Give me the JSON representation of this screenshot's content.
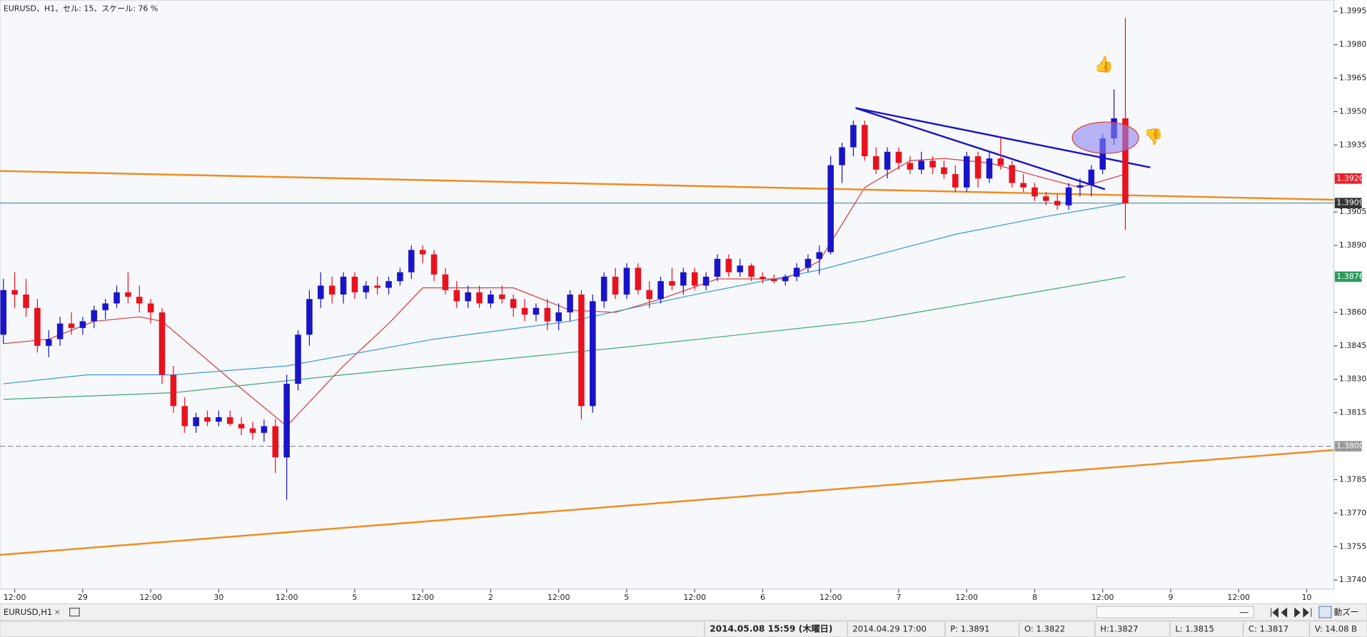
{
  "chart_data": {
    "type": "candlestick",
    "title": "EURUSD、H1、セル: 15、スケール: 76 %",
    "up_color": "#1a14c8",
    "down_color": "#e8121e",
    "xlim": [
      -0.3,
      117.4
    ],
    "ylim": [
      1.3736,
      1.4
    ],
    "yticks": [
      1.3995,
      {
        "value": 1.398,
        "label": "1.3980"
      },
      1.3965,
      {
        "value": 1.395,
        "label": "1.3950"
      },
      1.3935,
      1.3905,
      {
        "value": 1.389,
        "label": "1.3890"
      },
      {
        "value": 1.386,
        "label": "1.3860"
      },
      1.3845,
      {
        "value": 1.383,
        "label": "1.3830"
      },
      1.3815,
      1.3785,
      {
        "value": 1.377,
        "label": "1.3770"
      },
      1.3755,
      {
        "value": 1.374,
        "label": "1.3740"
      }
    ],
    "xticks": [
      {
        "value": 1,
        "label": "12:00"
      },
      {
        "value": 7,
        "label": "29"
      },
      {
        "value": 13,
        "label": "12:00"
      },
      {
        "value": 19,
        "label": "30"
      },
      {
        "value": 25,
        "label": "12:00"
      },
      {
        "value": 31,
        "label": "5"
      },
      {
        "value": 37,
        "label": "12:00"
      },
      {
        "value": 43,
        "label": "2"
      },
      {
        "value": 49,
        "label": "12:00"
      },
      {
        "value": 55,
        "label": "5"
      },
      {
        "value": 61,
        "label": "12:00"
      },
      {
        "value": 67,
        "label": "6"
      },
      {
        "value": 73,
        "label": "12:00"
      },
      {
        "value": 79,
        "label": "7"
      },
      {
        "value": 85,
        "label": "12:00"
      },
      {
        "value": 91,
        "label": "8"
      },
      {
        "value": 97,
        "label": "12:00"
      },
      {
        "value": 103,
        "label": "9"
      },
      {
        "value": 109,
        "label": "12:00"
      },
      {
        "value": 115,
        "label": "10"
      }
    ],
    "open": [
      1.385,
      1.387,
      1.3868,
      1.3862,
      1.3845,
      1.3848,
      1.3855,
      1.3853,
      1.3856,
      1.3861,
      1.3864,
      1.3869,
      1.3867,
      1.3864,
      1.386,
      1.3832,
      1.3818,
      1.3809,
      1.3813,
      1.3811,
      1.3813,
      1.381,
      1.3808,
      1.3806,
      1.3809,
      1.3795,
      1.3828,
      1.385,
      1.3866,
      1.3872,
      1.3868,
      1.3876,
      1.3869,
      1.3872,
      1.3871,
      1.3874,
      1.3878,
      1.3888,
      1.3886,
      1.3877,
      1.387,
      1.3865,
      1.3869,
      1.3864,
      1.3868,
      1.3866,
      1.3862,
      1.3859,
      1.3862,
      1.3856,
      1.386,
      1.3868,
      1.3818,
      1.3865,
      1.3876,
      1.3868,
      1.388,
      1.387,
      1.3866,
      1.3874,
      1.3872,
      1.3878,
      1.3872,
      1.3876,
      1.3884,
      1.3878,
      1.3881,
      1.3876,
      1.3875,
      1.3874,
      1.3876,
      1.388,
      1.3884,
      1.3887,
      1.3926,
      1.3934,
      1.3944,
      1.393,
      1.3924,
      1.3932,
      1.3927,
      1.3924,
      1.3928,
      1.3925,
      1.3922,
      1.3916,
      1.393,
      1.392,
      1.3929,
      1.3926,
      1.3918,
      1.3916,
      1.3912,
      1.391,
      1.3908,
      1.3916,
      1.3917,
      1.3924,
      1.3938,
      1.3947
    ],
    "high": [
      1.3875,
      1.3878,
      1.3875,
      1.3866,
      1.3852,
      1.3858,
      1.386,
      1.3858,
      1.3863,
      1.3866,
      1.3872,
      1.3878,
      1.3872,
      1.3866,
      1.3862,
      1.3836,
      1.3822,
      1.3815,
      1.3816,
      1.3816,
      1.3816,
      1.3813,
      1.3811,
      1.3812,
      1.3812,
      1.3832,
      1.3852,
      1.387,
      1.3878,
      1.3876,
      1.3878,
      1.3878,
      1.3874,
      1.3876,
      1.3876,
      1.388,
      1.389,
      1.389,
      1.3888,
      1.388,
      1.3874,
      1.3872,
      1.3872,
      1.387,
      1.3872,
      1.3868,
      1.3866,
      1.3864,
      1.3866,
      1.3864,
      1.387,
      1.387,
      1.3868,
      1.3878,
      1.388,
      1.3882,
      1.3882,
      1.3874,
      1.3876,
      1.388,
      1.388,
      1.388,
      1.3878,
      1.3886,
      1.3886,
      1.3884,
      1.3882,
      1.3878,
      1.3877,
      1.3877,
      1.3882,
      1.3886,
      1.389,
      1.393,
      1.3936,
      1.3946,
      1.3946,
      1.3934,
      1.3934,
      1.3934,
      1.393,
      1.3932,
      1.393,
      1.3928,
      1.3926,
      1.3932,
      1.3932,
      1.3932,
      1.3938,
      1.3928,
      1.3922,
      1.3918,
      1.3914,
      1.3913,
      1.3918,
      1.392,
      1.3926,
      1.394,
      1.396,
      1.3992
    ],
    "low": [
      1.3846,
      1.3862,
      1.3858,
      1.3842,
      1.384,
      1.3845,
      1.385,
      1.385,
      1.3853,
      1.3857,
      1.3862,
      1.3864,
      1.386,
      1.3855,
      1.3828,
      1.3815,
      1.3806,
      1.3806,
      1.3809,
      1.3809,
      1.3809,
      1.3805,
      1.3803,
      1.3802,
      1.3788,
      1.3776,
      1.3825,
      1.3845,
      1.3862,
      1.3864,
      1.3864,
      1.3866,
      1.3866,
      1.3868,
      1.3868,
      1.3872,
      1.3875,
      1.3882,
      1.3874,
      1.3868,
      1.3862,
      1.3862,
      1.3862,
      1.3862,
      1.3864,
      1.3858,
      1.3856,
      1.3856,
      1.3852,
      1.3852,
      1.3856,
      1.3812,
      1.3815,
      1.3862,
      1.3866,
      1.3866,
      1.3868,
      1.3862,
      1.3864,
      1.387,
      1.3868,
      1.387,
      1.387,
      1.3874,
      1.3876,
      1.3876,
      1.3874,
      1.3873,
      1.3873,
      1.3872,
      1.3874,
      1.3878,
      1.3877,
      1.3886,
      1.3918,
      1.393,
      1.3928,
      1.3922,
      1.392,
      1.3924,
      1.3922,
      1.3922,
      1.3922,
      1.392,
      1.3914,
      1.3914,
      1.3916,
      1.3918,
      1.3924,
      1.3916,
      1.3914,
      1.391,
      1.3908,
      1.3906,
      1.3906,
      1.3912,
      1.3912,
      1.3922,
      1.3935,
      1.3897
    ],
    "close": [
      1.387,
      1.3868,
      1.3862,
      1.3845,
      1.3848,
      1.3855,
      1.3853,
      1.3856,
      1.3861,
      1.3864,
      1.3869,
      1.3867,
      1.3864,
      1.386,
      1.3832,
      1.3818,
      1.3809,
      1.3813,
      1.3811,
      1.3813,
      1.381,
      1.3808,
      1.3806,
      1.3809,
      1.3795,
      1.3828,
      1.385,
      1.3866,
      1.3872,
      1.3868,
      1.3876,
      1.3869,
      1.3872,
      1.3871,
      1.3874,
      1.3878,
      1.3888,
      1.3886,
      1.3877,
      1.387,
      1.3865,
      1.3869,
      1.3864,
      1.3868,
      1.3866,
      1.3862,
      1.3859,
      1.3862,
      1.3856,
      1.386,
      1.3868,
      1.3818,
      1.3865,
      1.3876,
      1.3868,
      1.388,
      1.387,
      1.3866,
      1.3874,
      1.3872,
      1.3878,
      1.3872,
      1.3876,
      1.3884,
      1.3878,
      1.3881,
      1.3876,
      1.3875,
      1.3874,
      1.3876,
      1.388,
      1.3884,
      1.3887,
      1.3926,
      1.3934,
      1.3944,
      1.393,
      1.3924,
      1.3932,
      1.3927,
      1.3924,
      1.3928,
      1.3925,
      1.3922,
      1.3916,
      1.393,
      1.392,
      1.3929,
      1.3926,
      1.3918,
      1.3916,
      1.3912,
      1.391,
      1.3908,
      1.3916,
      1.3917,
      1.3924,
      1.3938,
      1.3947,
      1.3909
    ],
    "moving_averages": [
      {
        "color": "#e03a3a",
        "x": [
          0,
          4,
          8,
          12,
          14,
          20,
          25,
          30,
          34,
          37,
          45,
          50,
          54,
          58,
          63,
          69,
          72,
          76,
          80,
          83,
          87,
          92,
          95,
          99
        ],
        "values": [
          1.3846,
          1.3848,
          1.3856,
          1.3858,
          1.3856,
          1.383,
          1.3809,
          1.3836,
          1.3855,
          1.3871,
          1.3871,
          1.3861,
          1.386,
          1.3866,
          1.3875,
          1.3875,
          1.3883,
          1.3916,
          1.3928,
          1.3929,
          1.3927,
          1.392,
          1.3916,
          1.3922
        ]
      },
      {
        "color": "#3a9ad8",
        "x": [
          0,
          7.4,
          15,
          25,
          38,
          50,
          61,
          72,
          84,
          92,
          99
        ],
        "values": [
          1.3828,
          1.3832,
          1.3832,
          1.3836,
          1.3848,
          1.3856,
          1.3868,
          1.3879,
          1.3895,
          1.3903,
          1.3909
        ]
      },
      {
        "color": "#3aaa7a",
        "x": [
          0,
          15,
          30,
          54,
          76,
          99
        ],
        "values": [
          1.3821,
          1.3824,
          1.3832,
          1.3844,
          1.3856,
          1.3876
        ]
      }
    ],
    "trendlines": [
      {
        "color": "#f08c1a",
        "x": [
          -0.3,
          117.4
        ],
        "values": [
          1.39234,
          1.39105
        ]
      },
      {
        "color": "#f08c1a",
        "x": [
          -0.3,
          117.4
        ],
        "values": [
          1.37513,
          1.37983
        ]
      },
      {
        "color": "#1a14c8",
        "x": [
          75.2,
          101.2
        ],
        "values": [
          1.39516,
          1.3925
        ]
      },
      {
        "color": "#1a14c8",
        "x": [
          75.2,
          97.2
        ],
        "values": [
          1.39516,
          1.39152
        ]
      }
    ],
    "hlines": [
      {
        "value": 1.3909,
        "color": "#4a8a9a",
        "dash": false
      },
      {
        "value": 1.38,
        "color": "#888888",
        "dash": true
      }
    ],
    "price_badges": [
      {
        "value": 1.392,
        "label": "1.3920",
        "color": "#e8202a"
      },
      {
        "value": 1.3909,
        "label": "1.3909",
        "color": "#333333"
      },
      {
        "value": 1.3876,
        "label": "1.3876",
        "color": "#2e9a5a"
      },
      {
        "value": 1.38,
        "label": "1.3800",
        "color": "#9a9a9a"
      }
    ]
  },
  "tab_label": "EURUSD,H1",
  "zoom_label": "動ズー",
  "status_bar": [
    "2014.05.08 15:59 (木曜日)",
    "2014.04.29 17:00",
    "P: 1.3891",
    "O: 1.3822",
    "H:1.3827",
    "L: 1.3815",
    "C: 1.3817",
    "V: 14.08 B"
  ]
}
